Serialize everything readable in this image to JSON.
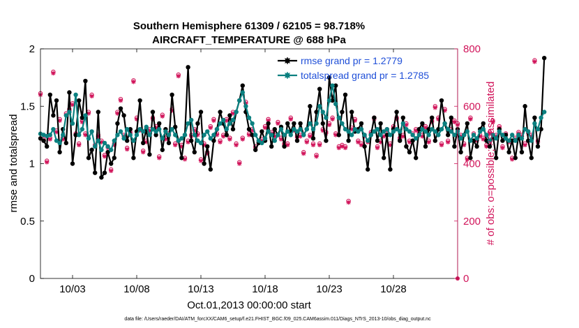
{
  "chart_data": {
    "type": "line",
    "title_line1": "Southern Hemisphere 61309 / 62105 = 98.718%",
    "title_line2": "AIRCRAFT_TEMPERATURE @ 688 hPa",
    "xlabel": "Oct.01,2013 00:00:00 start",
    "ylabel_left": "rmse and totalspread",
    "ylabel_right": "# of obs: o=possible; ×=assimilated",
    "xlim": [
      0.5,
      33
    ],
    "ylim_left": [
      0,
      2
    ],
    "ylim_right": [
      0,
      800
    ],
    "x_ticks": [
      3,
      8,
      13,
      18,
      23,
      28
    ],
    "x_tick_labels": [
      "10/03",
      "10/08",
      "10/13",
      "10/18",
      "10/23",
      "10/28"
    ],
    "y_ticks_left": [
      0,
      0.5,
      1,
      1.5,
      2
    ],
    "y_tick_labels_left": [
      "0",
      "0.5",
      "1",
      "1.5",
      "2"
    ],
    "y_ticks_right": [
      0,
      200,
      400,
      600,
      800
    ],
    "y_tick_labels_right": [
      "0",
      "200",
      "400",
      "600",
      "800"
    ],
    "footer": "data file: /Users/raeder/DAI/ATM_forcXX/CAM6_setup/f.e21.FHIST_BGC.f09_025.CAM6assim.011/Diags_NTrS_2013-10/obs_diag_output.nc",
    "x_start": 0.5,
    "x_step": 0.25,
    "series": [
      {
        "name": "rmse",
        "legend": "rmse grand pr = 1.2779",
        "color": "#000000",
        "axis": "left",
        "values": [
          1.22,
          1.2,
          1.15,
          1.6,
          1.42,
          1.55,
          1.1,
          1.3,
          1.18,
          1.62,
          1.0,
          1.25,
          1.55,
          1.4,
          1.72,
          1.05,
          1.12,
          0.92,
          1.45,
          0.88,
          0.92,
          1.1,
          1.0,
          1.05,
          1.35,
          1.48,
          1.42,
          1.2,
          1.3,
          1.05,
          1.28,
          1.55,
          1.18,
          1.3,
          1.08,
          1.45,
          1.25,
          1.35,
          1.12,
          1.3,
          1.18,
          1.6,
          1.32,
          1.2,
          1.05,
          1.25,
          1.84,
          1.2,
          1.1,
          1.35,
          1.45,
          1.0,
          1.15,
          0.95,
          1.2,
          1.3,
          1.45,
          1.35,
          1.25,
          1.42,
          1.3,
          1.45,
          1.55,
          1.68,
          1.45,
          1.3,
          1.25,
          1.12,
          1.18,
          1.28,
          1.2,
          1.35,
          1.15,
          1.3,
          1.25,
          1.32,
          1.15,
          1.35,
          1.28,
          1.35,
          1.2,
          1.35,
          1.25,
          1.3,
          1.5,
          1.22,
          1.45,
          1.65,
          1.35,
          1.2,
          1.75,
          1.55,
          1.68,
          1.25,
          1.45,
          1.6,
          1.2,
          1.45,
          1.28,
          1.3,
          1.35,
          1.15,
          0.95,
          1.25,
          1.4,
          1.2,
          1.35,
          1.05,
          1.25,
          0.95,
          1.3,
          1.45,
          1.2,
          1.4,
          1.15,
          1.1,
          1.2,
          1.05,
          1.3,
          1.35,
          1.15,
          1.3,
          1.4,
          1.2,
          1.3,
          1.55,
          1.35,
          1.25,
          1.4,
          1.15,
          1.3,
          1.1,
          1.25,
          1.35,
          1.05,
          1.2,
          1.15,
          1.3,
          1.35,
          1.2,
          1.15,
          1.25,
          1.05,
          1.3,
          1.2,
          1.25,
          1.1,
          1.2,
          1.05,
          1.25,
          1.1,
          1.5,
          1.2,
          1.05,
          1.4,
          1.15,
          1.3,
          1.92
        ]
      },
      {
        "name": "totalspread",
        "legend": "totalspread grand pr = 1.2785",
        "color": "#0b8080",
        "axis": "left",
        "values": [
          1.26,
          1.25,
          1.24,
          1.25,
          1.3,
          1.2,
          1.18,
          1.25,
          1.42,
          1.45,
          1.35,
          1.6,
          1.25,
          1.3,
          1.42,
          1.22,
          1.28,
          1.15,
          1.2,
          1.12,
          1.18,
          1.15,
          1.12,
          1.2,
          1.25,
          1.28,
          1.22,
          1.3,
          1.25,
          1.2,
          1.25,
          1.3,
          1.28,
          1.32,
          1.25,
          1.3,
          1.28,
          1.3,
          1.22,
          1.28,
          1.25,
          1.3,
          1.25,
          1.2,
          1.22,
          1.25,
          1.35,
          1.38,
          1.25,
          1.2,
          1.18,
          1.25,
          1.28,
          1.22,
          1.25,
          1.3,
          1.35,
          1.38,
          1.3,
          1.35,
          1.38,
          1.45,
          1.55,
          1.62,
          1.5,
          1.4,
          1.35,
          1.25,
          1.2,
          1.18,
          1.22,
          1.28,
          1.25,
          1.2,
          1.25,
          1.3,
          1.25,
          1.28,
          1.25,
          1.3,
          1.28,
          1.3,
          1.25,
          1.3,
          1.35,
          1.3,
          1.35,
          1.5,
          1.45,
          1.4,
          1.55,
          1.68,
          1.52,
          1.4,
          1.35,
          1.3,
          1.28,
          1.25,
          1.3,
          1.28,
          1.3,
          1.25,
          1.2,
          1.25,
          1.28,
          1.3,
          1.25,
          1.28,
          1.3,
          1.25,
          1.28,
          1.3,
          1.28,
          1.35,
          1.3,
          1.28,
          1.25,
          1.22,
          1.25,
          1.3,
          1.28,
          1.25,
          1.3,
          1.28,
          1.25,
          1.3,
          1.35,
          1.3,
          1.28,
          1.25,
          1.28,
          1.22,
          1.25,
          1.28,
          1.2,
          1.25,
          1.22,
          1.28,
          1.3,
          1.25,
          1.2,
          1.25,
          1.22,
          1.28,
          1.25,
          1.22,
          1.2,
          1.25,
          1.2,
          1.25,
          1.22,
          1.3,
          1.28,
          1.2,
          1.35,
          1.3,
          1.4,
          1.45
        ]
      },
      {
        "name": "obs_possible",
        "marker": "o",
        "color": "#d1145a",
        "axis": "right",
        "values": [
          645,
          485,
          410,
          490,
          720,
          515,
          555,
          490,
          575,
          590,
          610,
          505,
          470,
          550,
          505,
          580,
          640,
          465,
          500,
          480,
          430,
          460,
          380,
          470,
          580,
          625,
          500,
          455,
          510,
          690,
          560,
          520,
          445,
          480,
          520,
          560,
          530,
          425,
          570,
          490,
          505,
          590,
          470,
          710,
          465,
          420,
          480,
          500,
          520,
          505,
          415,
          470,
          440,
          530,
          555,
          505,
          480,
          500,
          555,
          490,
          580,
          470,
          405,
          490,
          615,
          505,
          520,
          460,
          480,
          485,
          530,
          555,
          510,
          500,
          545,
          490,
          470,
          470,
          560,
          520,
          495,
          500,
          440,
          480,
          500,
          470,
          430,
          470,
          520,
          510,
          540,
          560,
          505,
          460,
          465,
          460,
          270,
          525,
          555,
          480,
          470,
          500,
          480,
          510,
          560,
          460,
          480,
          500,
          520,
          470,
          530,
          560,
          490,
          500,
          540,
          480,
          505,
          520,
          510,
          500,
          530,
          480,
          550,
          600,
          560,
          470,
          590,
          480,
          520,
          550,
          540,
          500,
          470,
          420,
          560,
          505,
          485,
          500,
          490,
          465,
          510,
          550,
          500,
          530,
          460,
          505,
          480,
          420,
          490,
          510,
          500,
          470,
          510,
          500,
          760,
          480
        ]
      },
      {
        "name": "obs_assimilated",
        "marker": "x",
        "color": "#d1145a",
        "axis": "right",
        "values": [
          640,
          480,
          405,
          485,
          715,
          510,
          550,
          485,
          570,
          585,
          605,
          500,
          465,
          545,
          500,
          575,
          635,
          460,
          495,
          475,
          425,
          455,
          375,
          465,
          575,
          620,
          495,
          450,
          505,
          685,
          555,
          515,
          440,
          475,
          515,
          555,
          525,
          420,
          565,
          485,
          500,
          585,
          465,
          705,
          460,
          415,
          475,
          495,
          515,
          500,
          410,
          465,
          435,
          525,
          550,
          500,
          475,
          495,
          550,
          485,
          575,
          465,
          400,
          485,
          610,
          500,
          515,
          455,
          475,
          480,
          525,
          550,
          505,
          495,
          540,
          485,
          465,
          465,
          555,
          515,
          490,
          495,
          435,
          475,
          495,
          465,
          425,
          465,
          515,
          505,
          535,
          555,
          500,
          455,
          460,
          455,
          265,
          520,
          550,
          475,
          465,
          495,
          475,
          505,
          555,
          455,
          475,
          495,
          515,
          465,
          525,
          555,
          485,
          495,
          535,
          475,
          500,
          515,
          505,
          495,
          525,
          475,
          545,
          595,
          555,
          465,
          585,
          475,
          515,
          545,
          535,
          495,
          465,
          415,
          555,
          500,
          480,
          495,
          485,
          460,
          505,
          545,
          495,
          525,
          455,
          500,
          475,
          415,
          485,
          505,
          495,
          465,
          505,
          495,
          755,
          475
        ]
      }
    ]
  }
}
